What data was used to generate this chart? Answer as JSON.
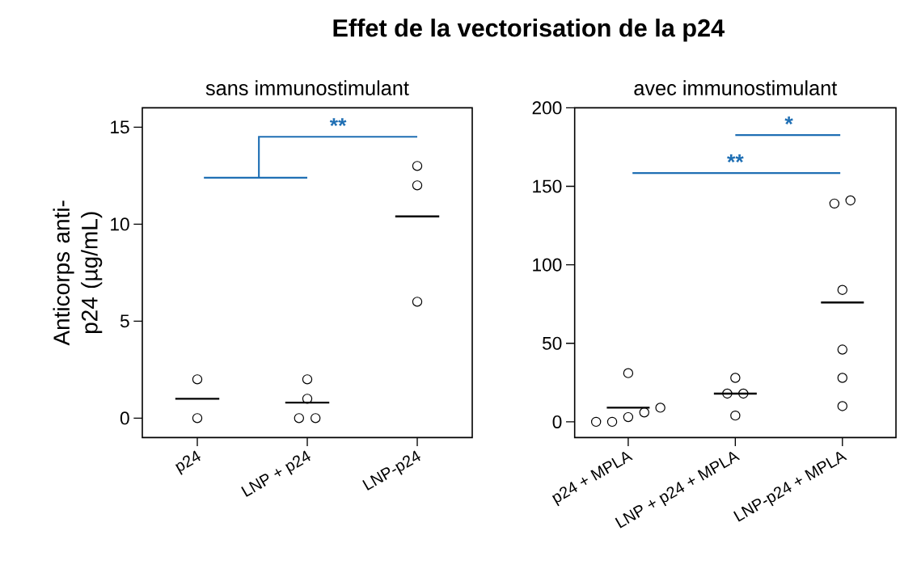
{
  "chart_data": [
    {
      "type": "scatter",
      "title": "Effet de la vectorisation de la p24",
      "subtitle": "sans immunostimulant",
      "ylabel": "Anticorps anti-p24 (µg/mL)",
      "categories": [
        "p24",
        "LNP + p24",
        "LNP-p24"
      ],
      "series": [
        {
          "marker": "circle",
          "color": "#000000",
          "x": [
            "p24",
            "p24",
            "LNP + p24",
            "LNP + p24",
            "LNP + p24",
            "LNP + p24",
            "LNP-p24",
            "LNP-p24",
            "LNP-p24"
          ],
          "values": [
            2,
            0,
            2,
            1,
            0,
            0,
            13,
            12,
            6
          ]
        },
        {
          "type": "box",
          "color": "#000000",
          "boxes": [
            {
              "low": 1.0,
              "q1": 1.0,
              "median": 1.0,
              "q3": 1.0,
              "high": 1.0
            },
            {
              "low": 0.8,
              "q1": 0.8,
              "median": 0.8,
              "q3": 0.8,
              "high": 0.8
            },
            {
              "low": 10.4,
              "q1": 10.4,
              "median": 10.4,
              "q3": 10.4,
              "high": 10.4
            }
          ]
        }
      ],
      "ylim": [
        -1,
        16
      ],
      "yticks": [
        0,
        5,
        10,
        15
      ],
      "grid": false,
      "annotations": [
        "**"
      ]
    },
    {
      "type": "scatter",
      "subtitle": "avec immunostimulant",
      "categories": [
        "p24 + MPLA",
        "LNP + p24 + MPLA",
        "LNP-p24 + MPLA"
      ],
      "series": [
        {
          "marker": "circle",
          "color": "#000000",
          "x": [
            "p24 + MPLA",
            "p24 + MPLA",
            "p24 + MPLA",
            "p24 + MPLA",
            "p24 + MPLA",
            "p24 + MPLA",
            "LNP + p24 + MPLA",
            "LNP + p24 + MPLA",
            "LNP + p24 + MPLA",
            "LNP + p24 + MPLA",
            "LNP-p24 + MPLA",
            "LNP-p24 + MPLA",
            "LNP-p24 + MPLA",
            "LNP-p24 + MPLA",
            "LNP-p24 + MPLA",
            "LNP-p24 + MPLA"
          ],
          "values": [
            31,
            9,
            6,
            3,
            0,
            0,
            28,
            18,
            18,
            4,
            141,
            139,
            84,
            46,
            28,
            10
          ]
        },
        {
          "type": "box",
          "color": "#000000",
          "boxes": [
            {
              "low": 9,
              "q1": 9,
              "median": 9,
              "q3": 9,
              "high": 9
            },
            {
              "low": 18,
              "q1": 18,
              "median": 18,
              "q3": 18,
              "high": 18
            },
            {
              "low": 76,
              "q1": 76,
              "median": 76,
              "q3": 76,
              "high": 76
            }
          ]
        }
      ],
      "ylim": [
        -10,
        200
      ],
      "yticks": [
        0,
        50,
        100,
        150,
        200
      ],
      "grid": false,
      "annotations": [
        "**",
        "*"
      ]
    }
  ]
}
